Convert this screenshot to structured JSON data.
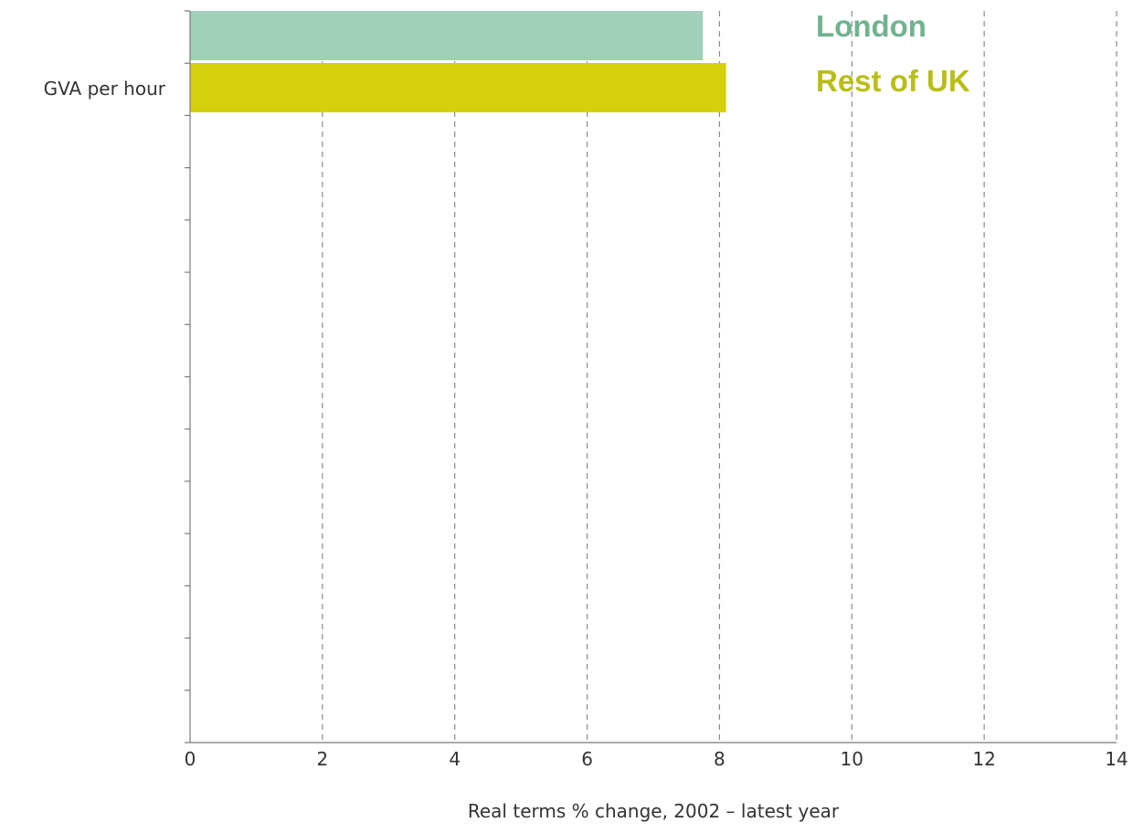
{
  "chart_data": {
    "type": "bar",
    "orientation": "horizontal",
    "categories": [
      "GVA per hour"
    ],
    "series": [
      {
        "name": "London",
        "values": [
          7.75
        ],
        "color": "#a0cfba"
      },
      {
        "name": "Rest of UK",
        "values": [
          8.1
        ],
        "color": "#d4d00c"
      }
    ],
    "xlabel": "Real terms % change, 2002 – latest year",
    "ylabel": "",
    "xlim": [
      0,
      14
    ],
    "x_ticks": [
      "0",
      "2",
      "4",
      "6",
      "8",
      "10",
      "12",
      "14"
    ],
    "grid": "vertical dashed",
    "legend": {
      "placement": "top-right",
      "entries": [
        {
          "label": "London",
          "color": "#6fb391"
        },
        {
          "label": "Rest of UK",
          "color": "#b8be16"
        }
      ]
    }
  }
}
